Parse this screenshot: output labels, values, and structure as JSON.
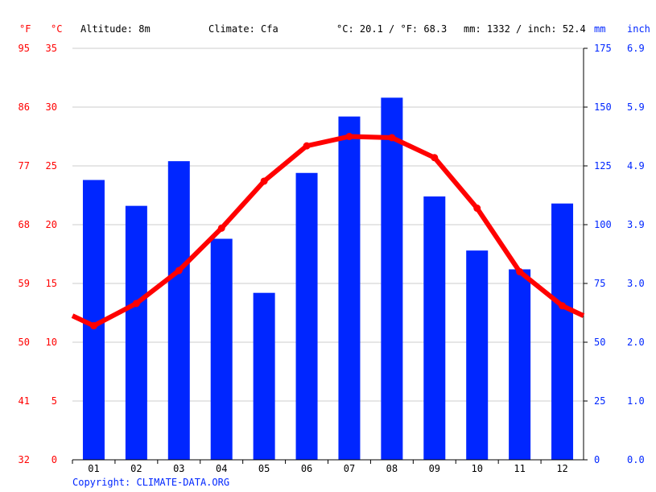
{
  "header": {
    "unit_f": "°F",
    "unit_c": "°C",
    "altitude": "Altitude: 8m",
    "climate": "Climate: Cfa",
    "temp_avg": "°C: 20.1 / °F: 68.3",
    "precip_total": "mm: 1332 / inch: 52.4",
    "unit_mm": "mm",
    "unit_inch": "inch"
  },
  "copyright": "Copyright: CLIMATE-DATA.ORG",
  "colors": {
    "temperature": "#ff0000",
    "precipitation": "#0026ff",
    "grid": "#cccccc"
  },
  "chart_data": {
    "type": "bar+line",
    "categories": [
      "01",
      "02",
      "03",
      "04",
      "05",
      "06",
      "07",
      "08",
      "09",
      "10",
      "11",
      "12"
    ],
    "series": [
      {
        "name": "mm",
        "type": "bar",
        "axis": "right",
        "values": [
          119,
          108,
          127,
          94,
          71,
          122,
          146,
          154,
          112,
          89,
          81,
          109
        ]
      },
      {
        "name": "°C",
        "type": "line",
        "axis": "left",
        "values": [
          11.4,
          13.3,
          16.1,
          19.7,
          23.7,
          26.7,
          27.5,
          27.4,
          25.7,
          21.4,
          16.0,
          13.1
        ]
      }
    ],
    "y_left": {
      "label": "°C",
      "ticks": [
        "0",
        "5",
        "10",
        "15",
        "20",
        "25",
        "30",
        "35"
      ],
      "range": [
        0,
        35
      ]
    },
    "y_left_f": {
      "label": "°F",
      "ticks": [
        "32",
        "41",
        "50",
        "59",
        "68",
        "77",
        "86",
        "95"
      ]
    },
    "y_right": {
      "label": "mm",
      "ticks": [
        "0",
        "25",
        "50",
        "75",
        "100",
        "125",
        "150",
        "175"
      ],
      "range": [
        0,
        175
      ]
    },
    "y_right_inch": {
      "label": "inch",
      "ticks": [
        "0.0",
        "1.0",
        "2.0",
        "3.0",
        "3.9",
        "4.9",
        "5.9",
        "6.9"
      ]
    },
    "grid": true
  }
}
